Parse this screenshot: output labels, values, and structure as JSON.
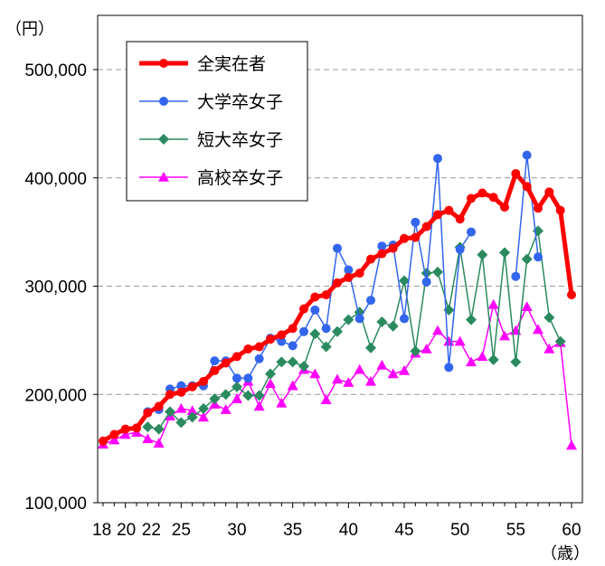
{
  "chart_data": {
    "type": "line",
    "y_unit": "（円）",
    "x_unit": "（歳）",
    "ylim": [
      100000,
      500000
    ],
    "xlim": [
      18,
      60
    ],
    "grid": "horizontal-dashed",
    "legend_position": "top-left",
    "y_ticks": [
      "100,000",
      "200,000",
      "300,000",
      "400,000",
      "500,000"
    ],
    "y_tick_values": [
      100000,
      200000,
      300000,
      400000,
      500000
    ],
    "x_ticks": [
      "18",
      "20",
      "22",
      "25",
      "30",
      "35",
      "40",
      "45",
      "50",
      "55",
      "60"
    ],
    "x_tick_values": [
      18,
      20,
      22,
      25,
      30,
      35,
      40,
      45,
      50,
      55,
      60
    ],
    "x": [
      18,
      19,
      20,
      21,
      22,
      23,
      24,
      25,
      26,
      27,
      28,
      29,
      30,
      31,
      32,
      33,
      34,
      35,
      36,
      37,
      38,
      39,
      40,
      41,
      42,
      43,
      44,
      45,
      46,
      47,
      48,
      49,
      50,
      51,
      52,
      53,
      54,
      55,
      56,
      57,
      58,
      59,
      60
    ],
    "series": [
      {
        "name": "全実在者",
        "color": "#ff0000",
        "marker": "circle",
        "line_width": 5,
        "values": [
          157000,
          163000,
          168000,
          169000,
          183000,
          189000,
          200000,
          202000,
          207000,
          212000,
          222000,
          229000,
          235000,
          242000,
          244000,
          251000,
          255000,
          261000,
          279000,
          290000,
          292000,
          303000,
          308000,
          312000,
          325000,
          330000,
          335000,
          344000,
          345000,
          355000,
          366000,
          370000,
          362000,
          381000,
          386000,
          382000,
          373000,
          404000,
          392000,
          372000,
          387000,
          370000,
          292000
        ]
      },
      {
        "name": "大学卒女子",
        "color": "#3366ee",
        "marker": "circle",
        "line_width": 1.5,
        "values": [
          null,
          null,
          null,
          null,
          184000,
          186000,
          205000,
          208000,
          208000,
          208000,
          231000,
          231000,
          215000,
          215000,
          233000,
          252000,
          249000,
          245000,
          258000,
          278000,
          261000,
          335000,
          315000,
          270000,
          287000,
          337000,
          338000,
          270000,
          359000,
          304000,
          418000,
          225000,
          334000,
          350000,
          null,
          null,
          null,
          309000,
          421000,
          327000,
          null,
          null,
          null
        ]
      },
      {
        "name": "短大卒女子",
        "color": "#2a8a5e",
        "marker": "diamond",
        "line_width": 1.5,
        "values": [
          null,
          null,
          null,
          null,
          170000,
          168000,
          184000,
          174000,
          179000,
          187000,
          196000,
          200000,
          207000,
          199000,
          199000,
          219000,
          230000,
          230000,
          226000,
          256000,
          244000,
          258000,
          269000,
          276000,
          243000,
          267000,
          263000,
          305000,
          240000,
          312000,
          313000,
          278000,
          336000,
          269000,
          329000,
          232000,
          331000,
          230000,
          325000,
          351000,
          271000,
          249000,
          null
        ]
      },
      {
        "name": "高校卒女子",
        "color": "#ff00ff",
        "marker": "triangle",
        "line_width": 1.5,
        "values": [
          154000,
          158000,
          163000,
          165000,
          159000,
          155000,
          180000,
          187000,
          185000,
          179000,
          191000,
          186000,
          196000,
          212000,
          189000,
          210000,
          192000,
          208000,
          223000,
          219000,
          195000,
          214000,
          211000,
          223000,
          212000,
          227000,
          219000,
          222000,
          238000,
          242000,
          259000,
          249000,
          249000,
          230000,
          235000,
          283000,
          254000,
          259000,
          281000,
          260000,
          242000,
          248000,
          153000
        ]
      }
    ]
  }
}
